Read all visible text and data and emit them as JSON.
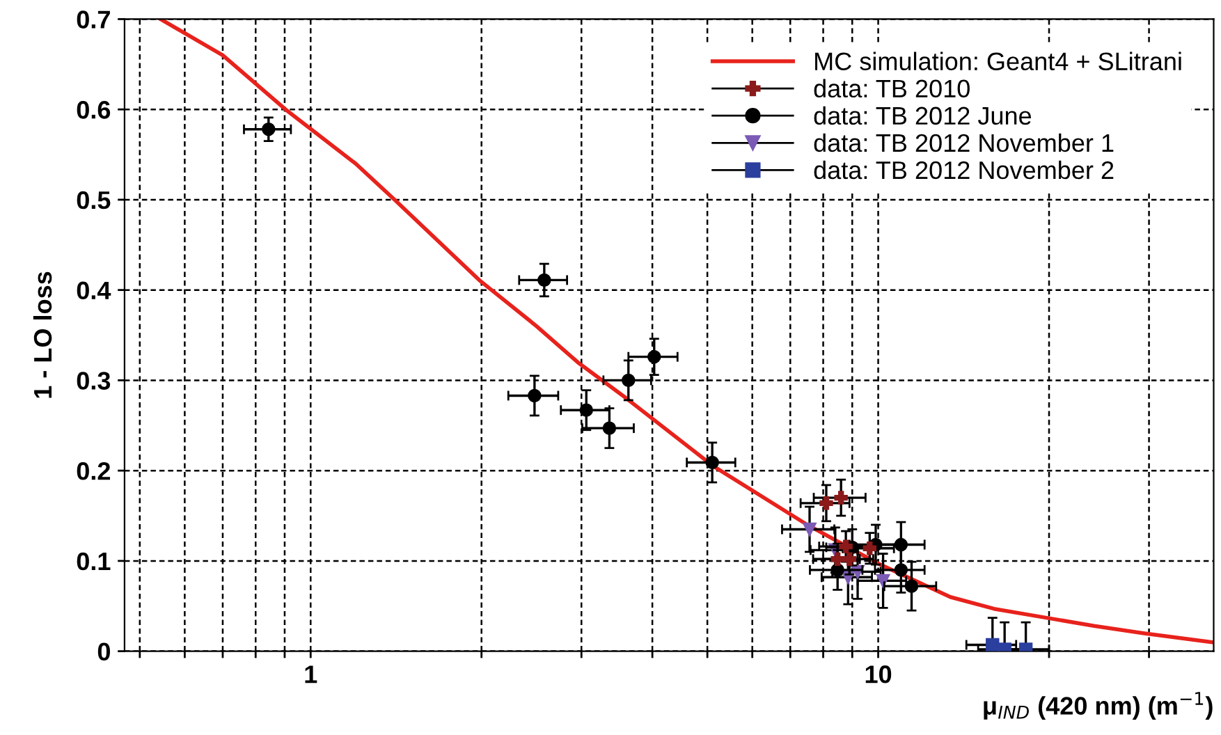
{
  "chart_data": {
    "type": "scatter",
    "xlabel": "μ$_{IND}$ (420 nm) (m$^{−1}$)",
    "ylabel": "1 - LO loss",
    "log": "x",
    "xlim": [
      0.47,
      39
    ],
    "ylim": [
      0,
      0.7
    ],
    "xticks": [
      {
        "value": 0.5,
        "label": null
      },
      {
        "value": 0.6,
        "label": null
      },
      {
        "value": 0.7,
        "label": null
      },
      {
        "value": 0.8,
        "label": null
      },
      {
        "value": 0.9,
        "label": null
      },
      1,
      {
        "value": 2,
        "label": null
      },
      {
        "value": 3,
        "label": null
      },
      {
        "value": 4,
        "label": null
      },
      {
        "value": 5,
        "label": null
      },
      {
        "value": 6,
        "label": null
      },
      {
        "value": 7,
        "label": null
      },
      {
        "value": 8,
        "label": null
      },
      {
        "value": 9,
        "label": null
      },
      10,
      {
        "value": 20,
        "label": null
      },
      {
        "value": 30,
        "label": null
      }
    ],
    "yticks": [
      0,
      0.1,
      0.2,
      0.3,
      0.4,
      0.5,
      0.6,
      0.7
    ],
    "grid": true,
    "legend": "top right",
    "series": [
      {
        "name": "MC simulation: Geant4 + SLitrani",
        "type": "line",
        "color": "#e8221c",
        "marker": "none",
        "x": [
          0.544,
          0.7,
          0.903,
          1.2,
          1.406,
          1.99,
          2.5,
          2.955,
          3.6,
          5.12,
          7.5,
          10.0,
          13.4,
          16,
          19.8,
          24,
          29.3,
          38.7
        ],
        "values": [
          0.7,
          0.66,
          0.6,
          0.54,
          0.5,
          0.41,
          0.36,
          0.32,
          0.28,
          0.205,
          0.14,
          0.097,
          0.06,
          0.047,
          0.037,
          0.028,
          0.02,
          0.01
        ]
      },
      {
        "name": "data: TB 2010",
        "color": "#8b1a1a",
        "marker": "cross",
        "x": [
          8.1,
          8.6,
          8.77,
          9.66,
          8.48,
          8.9
        ],
        "values": [
          0.164,
          0.17,
          0.116,
          0.114,
          0.102,
          0.102
        ],
        "errors": [
          0.02,
          0.02,
          0.017,
          0.017,
          0.017,
          0.017
        ],
        "xerrors": [
          0.8,
          0.9,
          0.9,
          1.0,
          0.8,
          0.9
        ]
      },
      {
        "name": "data: TB 2012 June",
        "color": "#000000",
        "marker": "circle",
        "x": [
          0.843,
          2.58,
          2.48,
          3.06,
          3.36,
          3.63,
          4.03,
          5.1,
          9.9,
          10.97,
          10.97,
          11.45,
          8.48,
          9.0
        ],
        "values": [
          0.578,
          0.411,
          0.283,
          0.267,
          0.247,
          0.3,
          0.326,
          0.209,
          0.118,
          0.118,
          0.09,
          0.072,
          0.09,
          0.115
        ],
        "errors": [
          0.013,
          0.018,
          0.022,
          0.022,
          0.022,
          0.022,
          0.02,
          0.022,
          0.022,
          0.025,
          0.025,
          0.027,
          0.022,
          0.02
        ],
        "xerrors": [
          0.08,
          0.25,
          0.25,
          0.3,
          0.35,
          0.35,
          0.4,
          0.5,
          1.0,
          1.1,
          1.1,
          1.2,
          0.9,
          0.9
        ]
      },
      {
        "name": "data: TB 2012 November 1",
        "color": "#7b5bb5",
        "marker": "triangle",
        "x": [
          7.57,
          8.4,
          8.85,
          9.2,
          10.2
        ],
        "values": [
          0.135,
          0.112,
          0.082,
          0.088,
          0.078
        ],
        "errors": [
          0.025,
          0.025,
          0.03,
          0.03,
          0.03
        ],
        "xerrors": [
          0.8,
          0.8,
          0.9,
          0.9,
          1.0
        ]
      },
      {
        "name": "data: TB 2012 November 2",
        "color": "#2b3f9e",
        "marker": "square",
        "x": [
          15.9,
          16.7,
          18.2
        ],
        "values": [
          0.007,
          0.002,
          0.002
        ],
        "errors": [
          0.03,
          0.03,
          0.03
        ],
        "xerrors": [
          1.6,
          1.7,
          1.8
        ]
      }
    ]
  }
}
